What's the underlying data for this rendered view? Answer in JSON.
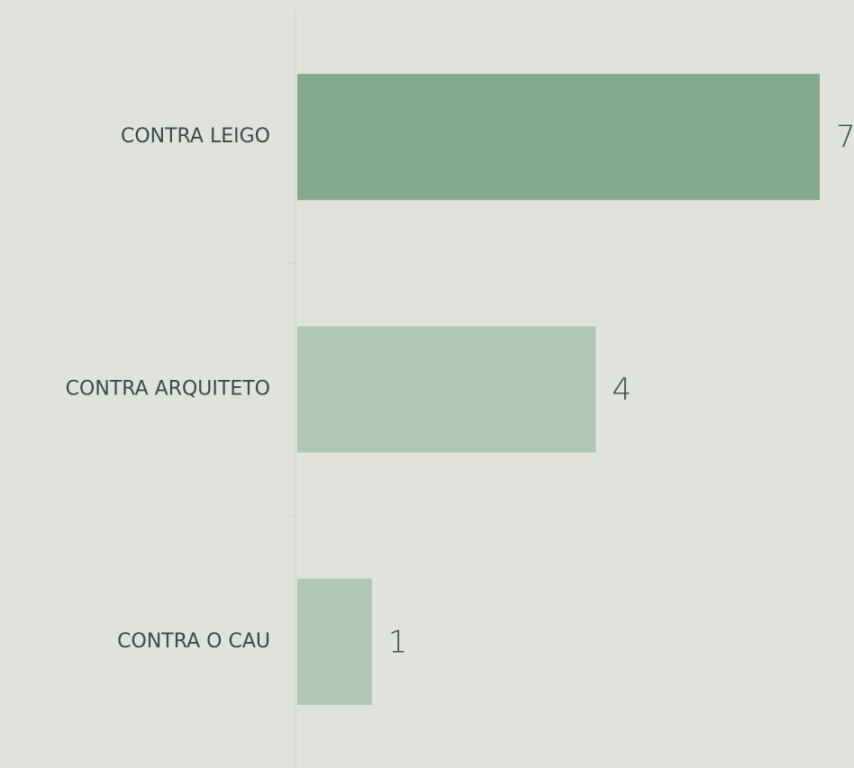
{
  "chart_data": {
    "type": "barh",
    "categories": [
      "CONTRA LEIGO",
      "CONTRA ARQUITETO",
      "CONTRA O CAU"
    ],
    "values": [
      7,
      4,
      1
    ],
    "colors": [
      "#86a98c",
      "#b0c7b7",
      "#b0c7b7"
    ],
    "xlim": [
      0,
      7
    ]
  }
}
